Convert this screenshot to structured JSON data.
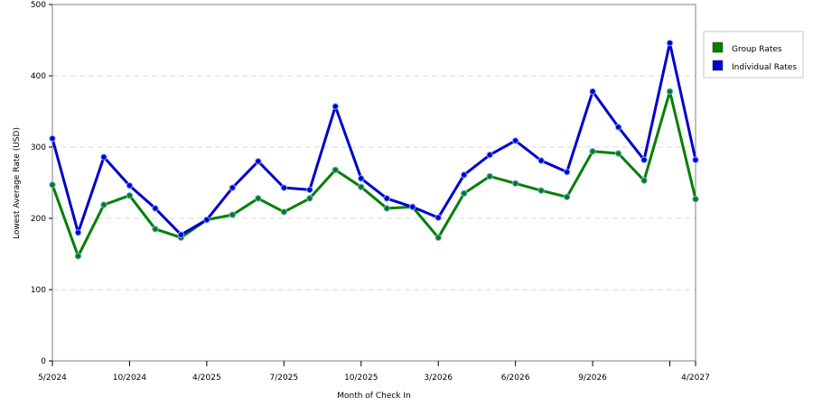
{
  "chart_data": {
    "type": "line",
    "title": "",
    "xlabel": "Month of Check In",
    "ylabel": "Lowest Average Rate (USD)",
    "ylim": [
      0,
      500
    ],
    "yticks": [
      0,
      100,
      200,
      300,
      400,
      500
    ],
    "grid": "horizontal dashed",
    "legend_position": "right",
    "x_tick_labels": [
      "5/2024",
      "10/2024",
      "4/2025",
      "7/2025",
      "10/2025",
      "3/2026",
      "6/2026",
      "9/2026",
      "",
      "4/2027"
    ],
    "x_tick_indices": [
      0,
      3,
      6,
      9,
      12,
      15,
      18,
      21,
      24,
      25
    ],
    "series": [
      {
        "name": "Group Rates",
        "color": "#008000",
        "values": [
          247,
          147,
          219,
          232,
          185,
          173,
          198,
          205,
          228,
          209,
          228,
          268,
          244,
          214,
          216,
          173,
          235,
          259,
          249,
          239,
          230,
          294,
          291,
          253,
          378,
          227
        ]
      },
      {
        "name": "Individual Rates",
        "color": "#0000cc",
        "values": [
          312,
          180,
          286,
          246,
          214,
          177,
          198,
          243,
          280,
          243,
          240,
          357,
          256,
          228,
          216,
          201,
          261,
          289,
          309,
          281,
          265,
          378,
          328,
          282,
          446,
          282
        ]
      }
    ]
  }
}
